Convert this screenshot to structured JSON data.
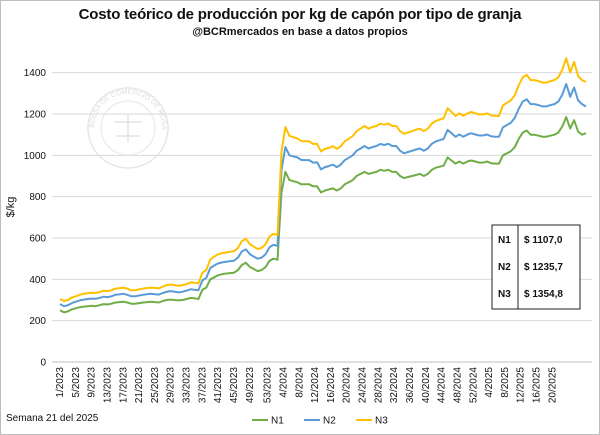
{
  "chart_data": {
    "type": "line",
    "title": "Costo teórico de producción por kg de capón por tipo de granja",
    "subtitle": "@BCRmercados en base a datos propios",
    "ylabel": "$/kg",
    "xlabel": "",
    "ylim": [
      0,
      1500
    ],
    "yticks": [
      0,
      200,
      400,
      600,
      800,
      1000,
      1200,
      1400
    ],
    "grid": true,
    "legend_position": "bottom",
    "watermark_text": "BOLSA DE COMERCIO DE ROSARIO",
    "footnote": "Semana 21 del 2025",
    "x_tick_labels": [
      "1/2023",
      "5/2023",
      "9/2023",
      "13/2023",
      "17/2023",
      "21/2023",
      "25/2023",
      "29/2023",
      "33/2023",
      "37/2023",
      "41/2023",
      "45/2023",
      "49/2023",
      "53/2023",
      "4/2024",
      "8/2024",
      "12/2024",
      "16/2024",
      "20/2024",
      "24/2024",
      "28/2024",
      "32/2024",
      "36/2024",
      "40/2024",
      "44/2024",
      "48/2024",
      "52/2024",
      "4/2025",
      "8/2025",
      "12/2025",
      "16/2025",
      "20/2025"
    ],
    "series": [
      {
        "name": "N1",
        "color": "#70ad47",
        "values": [
          250,
          240,
          245,
          255,
          260,
          265,
          268,
          270,
          272,
          270,
          275,
          280,
          278,
          282,
          288,
          290,
          292,
          288,
          282,
          282,
          285,
          288,
          290,
          292,
          290,
          288,
          295,
          300,
          302,
          300,
          298,
          300,
          305,
          310,
          308,
          305,
          350,
          360,
          400,
          410,
          420,
          425,
          428,
          430,
          432,
          445,
          470,
          480,
          460,
          450,
          440,
          445,
          460,
          490,
          500,
          495,
          820,
          920,
          880,
          875,
          870,
          860,
          860,
          860,
          850,
          850,
          820,
          830,
          835,
          840,
          830,
          840,
          860,
          870,
          880,
          900,
          910,
          920,
          910,
          915,
          920,
          930,
          925,
          930,
          920,
          920,
          900,
          890,
          895,
          900,
          905,
          910,
          900,
          910,
          930,
          940,
          945,
          950,
          990,
          975,
          960,
          970,
          960,
          970,
          975,
          970,
          965,
          965,
          970,
          962,
          960,
          960,
          1000,
          1010,
          1020,
          1040,
          1080,
          1110,
          1120,
          1100,
          1100,
          1095,
          1090,
          1090,
          1095,
          1100,
          1110,
          1140,
          1185,
          1130,
          1170,
          1115,
          1100,
          1107
        ]
      },
      {
        "name": "N2",
        "color": "#5b9bd5",
        "values": [
          280,
          270,
          275,
          285,
          292,
          298,
          302,
          305,
          307,
          306,
          310,
          316,
          314,
          318,
          325,
          327,
          330,
          325,
          318,
          318,
          322,
          325,
          328,
          330,
          328,
          326,
          334,
          340,
          343,
          340,
          337,
          340,
          345,
          352,
          350,
          347,
          395,
          407,
          455,
          467,
          477,
          482,
          485,
          488,
          490,
          505,
          535,
          545,
          522,
          510,
          500,
          505,
          522,
          556,
          567,
          562,
          930,
          1040,
          1000,
          995,
          990,
          978,
          977,
          977,
          965,
          966,
          932,
          943,
          948,
          955,
          943,
          955,
          977,
          988,
          1000,
          1022,
          1033,
          1045,
          1033,
          1040,
          1045,
          1055,
          1050,
          1056,
          1045,
          1045,
          1022,
          1010,
          1016,
          1022,
          1028,
          1033,
          1022,
          1033,
          1056,
          1067,
          1073,
          1079,
          1123,
          1107,
          1090,
          1101,
          1090,
          1101,
          1107,
          1101,
          1096,
          1096,
          1101,
          1092,
          1090,
          1090,
          1135,
          1147,
          1158,
          1181,
          1226,
          1260,
          1271,
          1248,
          1248,
          1243,
          1237,
          1237,
          1243,
          1248,
          1260,
          1294,
          1345,
          1283,
          1328,
          1266,
          1248,
          1236
        ]
      },
      {
        "name": "N3",
        "color": "#ffc000",
        "values": [
          305,
          295,
          300,
          312,
          318,
          325,
          330,
          333,
          335,
          334,
          338,
          345,
          343,
          347,
          355,
          357,
          360,
          355,
          347,
          347,
          352,
          355,
          358,
          360,
          358,
          356,
          365,
          372,
          375,
          372,
          368,
          372,
          377,
          385,
          383,
          380,
          432,
          445,
          497,
          510,
          521,
          527,
          530,
          533,
          536,
          552,
          585,
          596,
          571,
          558,
          547,
          552,
          571,
          608,
          620,
          614,
          1017,
          1137,
          1094,
          1088,
          1082,
          1069,
          1068,
          1068,
          1055,
          1056,
          1019,
          1031,
          1036,
          1044,
          1031,
          1044,
          1068,
          1080,
          1093,
          1117,
          1129,
          1142,
          1129,
          1137,
          1142,
          1153,
          1148,
          1154,
          1142,
          1142,
          1117,
          1104,
          1111,
          1117,
          1124,
          1129,
          1117,
          1129,
          1154,
          1166,
          1173,
          1179,
          1228,
          1210,
          1191,
          1203,
          1191,
          1203,
          1210,
          1203,
          1198,
          1198,
          1203,
          1193,
          1191,
          1191,
          1241,
          1254,
          1266,
          1291,
          1340,
          1377,
          1389,
          1364,
          1364,
          1359,
          1352,
          1352,
          1359,
          1364,
          1377,
          1414,
          1470,
          1402,
          1452,
          1384,
          1364,
          1355
        ]
      }
    ],
    "table": [
      {
        "label": "N1",
        "value": "$ 1107,0"
      },
      {
        "label": "N2",
        "value": "$ 1235,7"
      },
      {
        "label": "N3",
        "value": "$ 1354,8"
      }
    ]
  }
}
